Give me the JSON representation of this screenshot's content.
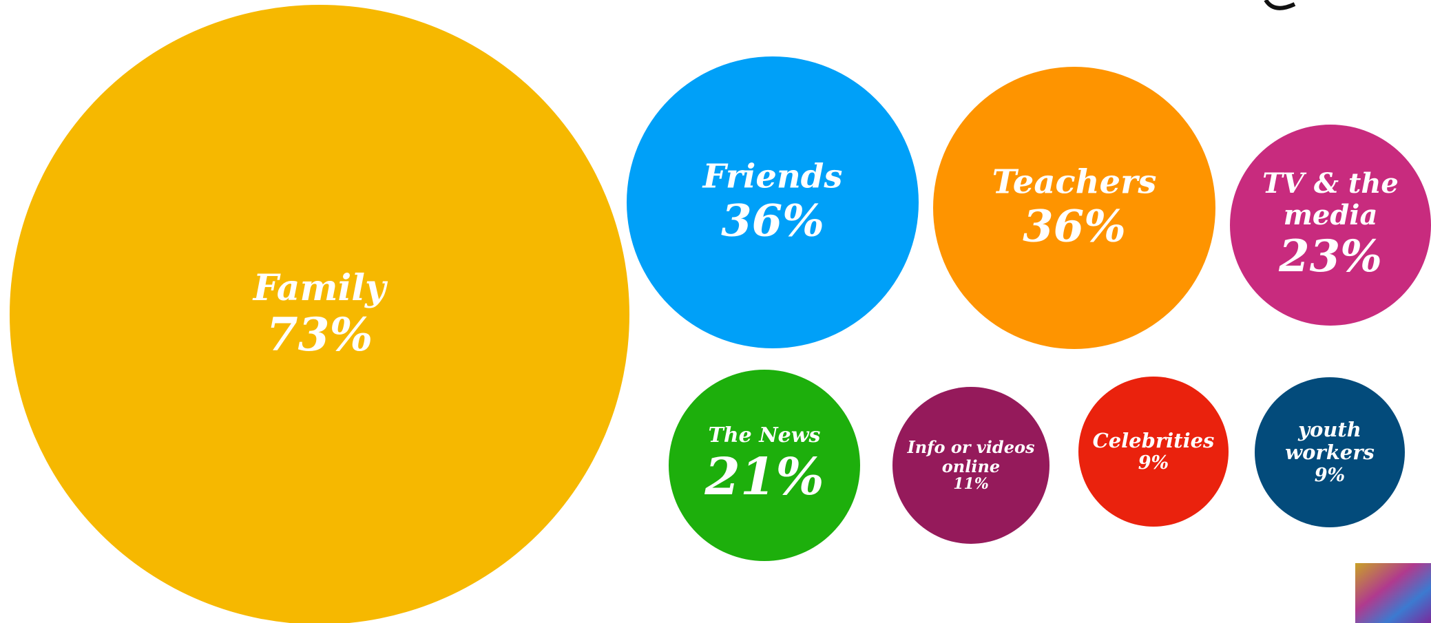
{
  "chart_data": {
    "type": "bubble",
    "categories": [
      "Family",
      "Friends",
      "Teachers",
      "TV & the media",
      "The News",
      "Info or videos online",
      "Celebrities",
      "youth workers"
    ],
    "values": [
      73,
      36,
      36,
      23,
      21,
      11,
      9,
      9
    ],
    "value_labels": [
      "73%",
      "36%",
      "36%",
      "23%",
      "21%",
      "11%",
      "9%",
      "9%"
    ],
    "colors": [
      "#f6b800",
      "#00a0f8",
      "#fe9400",
      "#c82b7e",
      "#1daf0c",
      "#951a5b",
      "#ea220d",
      "#034b7b"
    ]
  }
}
